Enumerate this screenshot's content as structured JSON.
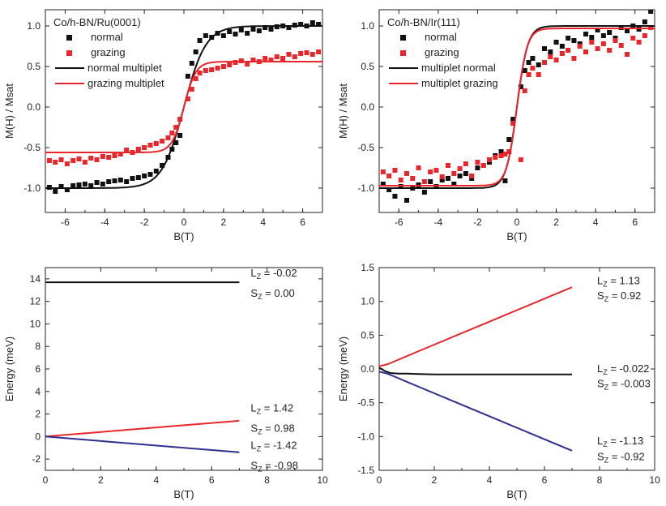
{
  "colors": {
    "black": "#111111",
    "red": "#e8262b",
    "blue": "#2e2e8f",
    "axis": "#222222"
  },
  "chart_data": [
    {
      "type": "scatter",
      "title": "Co/h-BN/Ru(0001)",
      "xlabel": "B(T)",
      "ylabel": "M(H) / Msat",
      "xlim": [
        -7,
        7
      ],
      "ylim": [
        -1.3,
        1.2
      ],
      "xticks": [
        -6,
        -4,
        -2,
        0,
        2,
        4,
        6
      ],
      "xtick_labels": [
        "-6",
        "-4",
        "-2",
        "0",
        "2",
        "4",
        "6"
      ],
      "yticks": [
        -1.0,
        -0.5,
        0.0,
        0.5,
        1.0
      ],
      "ytick_labels": [
        "-1.0",
        "-0.5",
        "0.0",
        "0.5",
        "1.0"
      ],
      "legend": [
        "normal",
        "grazing",
        "normal multiplet",
        "grazing multiplet"
      ],
      "series": [
        {
          "name": "normal",
          "kind": "points",
          "color": "#111111",
          "x": [
            -6.8,
            -6.5,
            -6.2,
            -5.9,
            -5.6,
            -5.3,
            -5.0,
            -4.7,
            -4.4,
            -4.1,
            -3.8,
            -3.5,
            -3.2,
            -2.9,
            -2.6,
            -2.3,
            -2.0,
            -1.7,
            -1.4,
            -1.1,
            -0.8,
            -0.6,
            -0.4,
            -0.2,
            0.2,
            0.4,
            0.6,
            0.8,
            1.1,
            1.4,
            1.7,
            2.0,
            2.3,
            2.6,
            2.9,
            3.2,
            3.5,
            3.8,
            4.1,
            4.4,
            4.7,
            5.0,
            5.3,
            5.6,
            5.9,
            6.2,
            6.5,
            6.8
          ],
          "y": [
            -0.99,
            -1.04,
            -0.98,
            -1.02,
            -0.97,
            -0.96,
            -0.95,
            -0.97,
            -0.93,
            -0.95,
            -0.92,
            -0.91,
            -0.9,
            -0.92,
            -0.88,
            -0.87,
            -0.85,
            -0.83,
            -0.79,
            -0.72,
            -0.62,
            -0.52,
            -0.44,
            -0.35,
            0.38,
            0.54,
            0.68,
            0.82,
            0.88,
            0.86,
            0.91,
            0.88,
            0.93,
            0.9,
            0.95,
            0.91,
            0.96,
            0.94,
            0.98,
            0.96,
            0.99,
            1.0,
            0.98,
            1.01,
            1.02,
            1.0,
            1.04,
            1.02
          ]
        },
        {
          "name": "grazing",
          "kind": "points",
          "color": "#e8262b",
          "x": [
            -6.8,
            -6.5,
            -6.2,
            -5.9,
            -5.6,
            -5.3,
            -5.0,
            -4.7,
            -4.4,
            -4.1,
            -3.8,
            -3.5,
            -3.2,
            -2.9,
            -2.6,
            -2.3,
            -2.0,
            -1.7,
            -1.4,
            -1.1,
            -0.8,
            -0.6,
            -0.4,
            -0.2,
            0.2,
            0.4,
            0.6,
            0.8,
            1.1,
            1.4,
            1.7,
            2.0,
            2.3,
            2.6,
            2.9,
            3.2,
            3.5,
            3.8,
            4.1,
            4.4,
            4.7,
            5.0,
            5.3,
            5.6,
            5.9,
            6.2,
            6.5,
            6.8
          ],
          "y": [
            -0.66,
            -0.68,
            -0.65,
            -0.7,
            -0.66,
            -0.64,
            -0.68,
            -0.63,
            -0.65,
            -0.61,
            -0.62,
            -0.6,
            -0.58,
            -0.53,
            -0.56,
            -0.52,
            -0.5,
            -0.47,
            -0.45,
            -0.42,
            -0.38,
            -0.32,
            -0.25,
            -0.15,
            0.1,
            0.22,
            0.35,
            0.42,
            0.45,
            0.46,
            0.48,
            0.5,
            0.52,
            0.55,
            0.57,
            0.53,
            0.58,
            0.56,
            0.6,
            0.58,
            0.62,
            0.6,
            0.65,
            0.62,
            0.66,
            0.67,
            0.65,
            0.68
          ]
        },
        {
          "name": "normal multiplet",
          "kind": "line",
          "color": "#111111",
          "model": "tanh",
          "amp": 1.0,
          "scale": 1.1
        },
        {
          "name": "grazing multiplet",
          "kind": "line",
          "color": "#e8262b",
          "model": "tanh",
          "amp": 0.56,
          "scale": 0.6
        }
      ]
    },
    {
      "type": "scatter",
      "title": "Co/h-BN/Ir(111)",
      "xlabel": "B(T)",
      "ylabel": "M(H) / Msat",
      "xlim": [
        -7,
        7
      ],
      "ylim": [
        -1.3,
        1.2
      ],
      "xticks": [
        -6,
        -4,
        -2,
        0,
        2,
        4,
        6
      ],
      "xtick_labels": [
        "-6",
        "-4",
        "-2",
        "0",
        "2",
        "4",
        "6"
      ],
      "yticks": [
        -1.0,
        -0.5,
        0.0,
        0.5,
        1.0
      ],
      "ytick_labels": [
        "-1.0",
        "-0.5",
        "0.0",
        "0.5",
        "1.0"
      ],
      "legend": [
        "normal",
        "grazing",
        "multiplet normal",
        "multiplet grazing"
      ],
      "series": [
        {
          "name": "normal",
          "kind": "points",
          "color": "#111111",
          "x": [
            -6.8,
            -6.5,
            -6.2,
            -5.9,
            -5.6,
            -5.3,
            -5.0,
            -4.7,
            -4.4,
            -4.1,
            -3.8,
            -3.5,
            -3.2,
            -2.9,
            -2.6,
            -2.3,
            -2.0,
            -1.7,
            -1.4,
            -1.1,
            -0.8,
            -0.6,
            -0.4,
            -0.2,
            0.2,
            0.4,
            0.6,
            0.8,
            1.1,
            1.4,
            1.7,
            2.0,
            2.3,
            2.6,
            2.9,
            3.2,
            3.5,
            3.8,
            4.1,
            4.4,
            4.7,
            5.0,
            5.3,
            5.6,
            5.9,
            6.2,
            6.5,
            6.8
          ],
          "y": [
            -0.95,
            -1.02,
            -1.1,
            -0.98,
            -1.15,
            -1.0,
            -0.96,
            -1.05,
            -0.92,
            -0.98,
            -0.9,
            -0.88,
            -0.95,
            -0.85,
            -0.82,
            -0.88,
            -0.75,
            -0.72,
            -0.68,
            -0.6,
            -0.55,
            -0.91,
            -0.4,
            -0.15,
            0.25,
            0.45,
            0.55,
            0.6,
            0.52,
            0.72,
            0.68,
            0.8,
            0.75,
            0.85,
            0.82,
            0.78,
            0.9,
            0.86,
            0.95,
            0.88,
            0.92,
            0.85,
            0.98,
            0.94,
            1.0,
            0.96,
            1.05,
            1.18
          ]
        },
        {
          "name": "grazing",
          "kind": "points",
          "color": "#e8262b",
          "x": [
            -6.8,
            -6.5,
            -6.2,
            -5.9,
            -5.6,
            -5.3,
            -5.0,
            -4.7,
            -4.4,
            -4.1,
            -3.8,
            -3.5,
            -3.2,
            -2.9,
            -2.6,
            -2.3,
            -2.0,
            -1.7,
            -1.4,
            -1.1,
            -0.8,
            -0.6,
            -0.4,
            -0.2,
            0.2,
            0.4,
            0.6,
            0.8,
            1.1,
            1.4,
            1.7,
            2.0,
            2.3,
            2.6,
            2.9,
            3.2,
            3.5,
            3.8,
            4.1,
            4.4,
            4.7,
            5.0,
            5.3,
            5.6,
            5.9,
            6.2,
            6.5,
            6.8
          ],
          "y": [
            -0.8,
            -0.85,
            -0.78,
            -0.9,
            -0.82,
            -0.88,
            -0.75,
            -0.92,
            -0.8,
            -0.78,
            -0.86,
            -0.72,
            -0.82,
            -0.76,
            -0.7,
            -0.85,
            -0.68,
            -0.72,
            -0.65,
            -0.62,
            -0.6,
            -0.58,
            -0.55,
            -0.2,
            -0.65,
            0.2,
            0.4,
            0.48,
            0.4,
            0.55,
            0.62,
            0.58,
            0.66,
            0.7,
            0.6,
            0.75,
            0.68,
            0.8,
            0.72,
            0.78,
            0.7,
            0.82,
            0.76,
            0.65,
            0.85,
            0.8,
            0.88,
            0.98
          ]
        },
        {
          "name": "multiplet normal",
          "kind": "line",
          "color": "#111111",
          "model": "tanh",
          "amp": 1.0,
          "scale": 0.55
        },
        {
          "name": "multiplet grazing",
          "kind": "line",
          "color": "#e8262b",
          "model": "tanh",
          "amp": 0.97,
          "scale": 0.52
        }
      ]
    },
    {
      "type": "line",
      "xlabel": "B(T)",
      "ylabel": "Energy (meV)",
      "xlim": [
        0,
        10
      ],
      "ylim": [
        -3,
        15
      ],
      "xticks": [
        0,
        2,
        4,
        6,
        8,
        10
      ],
      "xtick_labels": [
        "0",
        "2",
        "4",
        "6",
        "8",
        "10"
      ],
      "yticks": [
        -2,
        0,
        2,
        4,
        6,
        8,
        10,
        12,
        14
      ],
      "ytick_labels": [
        "-2",
        "0",
        "2",
        "4",
        "6",
        "8",
        "10",
        "12",
        "14"
      ],
      "series": [
        {
          "name": "top",
          "color": "#111111",
          "x": [
            0,
            7
          ],
          "y": [
            13.7,
            13.7
          ]
        },
        {
          "name": "up",
          "color": "#e8262b",
          "x": [
            0,
            7
          ],
          "y": [
            0.0,
            1.4
          ]
        },
        {
          "name": "down",
          "color": "#2e2e8f",
          "x": [
            0,
            7
          ],
          "y": [
            0.0,
            -1.4
          ]
        }
      ],
      "annotations": [
        {
          "label": "L",
          "sub": "Z",
          "text": " = -0.02",
          "x": 7.0,
          "y": 14.5
        },
        {
          "label": "S",
          "sub": "Z",
          "text": " = 0.00",
          "x": 7.0,
          "y": 12.7
        },
        {
          "label": "L",
          "sub": "Z",
          "text": " = 1.42",
          "x": 7.0,
          "y": 2.5
        },
        {
          "label": "S",
          "sub": "Z",
          "text": " = 0.98",
          "x": 7.0,
          "y": 0.7
        },
        {
          "label": "L",
          "sub": "Z",
          "text": " = -1.42",
          "x": 7.0,
          "y": -0.8
        },
        {
          "label": "S",
          "sub": "Z",
          "text": " = -0.98",
          "x": 7.0,
          "y": -2.6
        }
      ]
    },
    {
      "type": "line",
      "xlabel": "B(T)",
      "ylabel": "Energy (meV)",
      "xlim": [
        0,
        10
      ],
      "ylim": [
        -1.5,
        1.5
      ],
      "xticks": [
        0,
        2,
        4,
        6,
        8,
        10
      ],
      "xtick_labels": [
        "0",
        "2",
        "4",
        "6",
        "8",
        "10"
      ],
      "yticks": [
        -1.5,
        -1.0,
        -0.5,
        0.0,
        0.5,
        1.0,
        1.5
      ],
      "ytick_labels": [
        "-1.5",
        "-1.0",
        "-0.5",
        "0.0",
        "0.5",
        "1.0",
        "1.5"
      ],
      "series": [
        {
          "name": "up",
          "color": "#e8262b",
          "x": [
            0,
            0.3,
            0.6,
            1.0,
            2,
            3,
            4,
            5,
            6,
            7
          ],
          "y": [
            0.04,
            0.07,
            0.12,
            0.19,
            0.36,
            0.53,
            0.7,
            0.87,
            1.04,
            1.21
          ]
        },
        {
          "name": "mid",
          "color": "#111111",
          "x": [
            0,
            0.2,
            0.4,
            0.7,
            1.0,
            2,
            4,
            7
          ],
          "y": [
            0.02,
            -0.03,
            -0.06,
            -0.07,
            -0.07,
            -0.08,
            -0.08,
            -0.08
          ]
        },
        {
          "name": "down",
          "color": "#2e2e8f",
          "x": [
            0,
            0.3,
            0.6,
            1.0,
            2,
            3,
            4,
            5,
            6,
            7
          ],
          "y": [
            -0.04,
            -0.07,
            -0.12,
            -0.19,
            -0.36,
            -0.53,
            -0.7,
            -0.87,
            -1.04,
            -1.21
          ]
        }
      ],
      "annotations": [
        {
          "label": "L",
          "sub": "Z",
          "text": " = 1.13",
          "x": 7.5,
          "y": 1.3
        },
        {
          "label": "S",
          "sub": "Z",
          "text": " = 0.92",
          "x": 7.5,
          "y": 1.08
        },
        {
          "label": "L",
          "sub": "Z",
          "text": " = -0.022",
          "x": 7.5,
          "y": 0.0
        },
        {
          "label": "S",
          "sub": "Z",
          "text": " = -0.003",
          "x": 7.5,
          "y": -0.22
        },
        {
          "label": "L",
          "sub": "Z",
          "text": " = -1.13",
          "x": 7.5,
          "y": -1.07
        },
        {
          "label": "S",
          "sub": "Z",
          "text": " = -0.92",
          "x": 7.5,
          "y": -1.3
        }
      ]
    }
  ]
}
